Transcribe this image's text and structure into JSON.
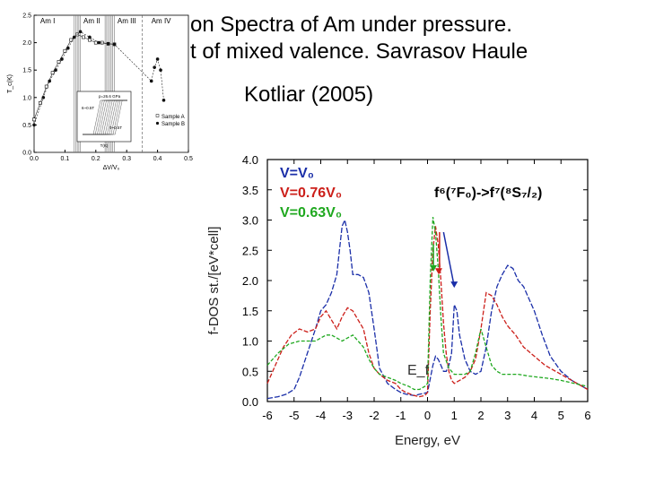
{
  "slide": {
    "title_lines": [
      "on Spectra of Am under pressure.",
      "t of mixed valence. Savrasov Haule",
      "Kotliar (2005)"
    ]
  },
  "chart_data": [
    {
      "type": "line",
      "title": "",
      "xlabel": "ΔV/V₀",
      "ylabel": "T_c(K)",
      "xlim": [
        0.0,
        0.5
      ],
      "ylim": [
        0.0,
        2.5
      ],
      "xticks": [
        "0.0",
        "0.1",
        "0.2",
        "0.3",
        "0.4",
        "0.5"
      ],
      "yticks": [
        "0.0",
        "0.5",
        "1.0",
        "1.5",
        "2.0",
        "2.5"
      ],
      "phase_labels": [
        "Am I",
        "Am II",
        "Am III",
        "Am IV"
      ],
      "legend": [
        "Sample A",
        "Sample B"
      ],
      "series": [
        {
          "name": "Sample A",
          "x": [
            0.0,
            0.02,
            0.04,
            0.06,
            0.08,
            0.1,
            0.12,
            0.14,
            0.16,
            0.18,
            0.2,
            0.22,
            0.24,
            0.26
          ],
          "y": [
            0.6,
            0.9,
            1.2,
            1.45,
            1.65,
            1.85,
            2.05,
            2.15,
            2.1,
            2.05,
            2.0,
            2.0,
            1.98,
            1.97
          ]
        },
        {
          "name": "Sample B",
          "x": [
            0.0,
            0.03,
            0.05,
            0.07,
            0.09,
            0.11,
            0.13,
            0.15,
            0.18,
            0.21,
            0.24,
            0.26,
            0.38,
            0.39,
            0.4,
            0.41,
            0.42
          ],
          "y": [
            0.5,
            1.0,
            1.3,
            1.5,
            1.7,
            1.9,
            2.1,
            2.2,
            2.1,
            2.0,
            1.98,
            1.97,
            1.3,
            1.55,
            1.7,
            1.5,
            0.95
          ]
        }
      ],
      "inset": {
        "xlabel": "T(K)",
        "labels": [
          "p=26.6 GPa",
          "6~0.5T",
          "0~0.5T"
        ]
      }
    },
    {
      "type": "line",
      "title": "",
      "xlabel": "Energy, eV",
      "ylabel": "f-DOS st./[eV*cell]",
      "xlim": [
        -6,
        6
      ],
      "ylim": [
        0.0,
        4.0
      ],
      "xticks": [
        "-6",
        "-5",
        "-4",
        "-3",
        "-2",
        "-1",
        "0",
        "1",
        "2",
        "3",
        "4",
        "5",
        "6"
      ],
      "yticks": [
        "0.0",
        "0.5",
        "1.0",
        "1.5",
        "2.0",
        "2.5",
        "3.0",
        "3.5",
        "4.0"
      ],
      "annotations": {
        "transition": "f⁶(⁷F₀)->f⁷(⁸S₇/₂)",
        "fermi": "E_f"
      },
      "series": [
        {
          "name": "V=V₀",
          "color": "#1a2ea8",
          "x": [
            -6,
            -5.6,
            -5.3,
            -5.0,
            -4.8,
            -4.5,
            -4.2,
            -4.0,
            -3.8,
            -3.6,
            -3.4,
            -3.3,
            -3.2,
            -3.1,
            -3.0,
            -2.9,
            -2.8,
            -2.6,
            -2.4,
            -2.2,
            -2.0,
            -1.8,
            -1.5,
            -1.2,
            -1.0,
            -0.8,
            -0.5,
            -0.3,
            0.0,
            0.2,
            0.3,
            0.4,
            0.5,
            0.6,
            0.7,
            0.8,
            0.9,
            1.0,
            1.1,
            1.2,
            1.4,
            1.6,
            1.8,
            2.0,
            2.2,
            2.4,
            2.6,
            2.8,
            3.0,
            3.2,
            3.4,
            3.6,
            3.8,
            4.0,
            4.3,
            4.6,
            5.0,
            5.4,
            5.8,
            6.0
          ],
          "y": [
            0.05,
            0.08,
            0.12,
            0.2,
            0.4,
            0.8,
            1.2,
            1.5,
            1.6,
            1.8,
            2.1,
            2.5,
            2.9,
            3.0,
            2.8,
            2.5,
            2.1,
            2.1,
            2.05,
            1.8,
            1.2,
            0.55,
            0.3,
            0.2,
            0.15,
            0.12,
            0.1,
            0.12,
            0.15,
            0.6,
            0.75,
            0.7,
            0.6,
            0.5,
            0.5,
            0.6,
            0.8,
            1.6,
            1.5,
            1.1,
            0.7,
            0.5,
            0.45,
            0.5,
            0.9,
            1.5,
            1.9,
            2.1,
            2.25,
            2.2,
            2.0,
            1.9,
            1.7,
            1.5,
            1.1,
            0.75,
            0.5,
            0.35,
            0.25,
            0.2
          ]
        },
        {
          "name": "V=0.76V₀",
          "color": "#cc1f1a",
          "x": [
            -6,
            -5.7,
            -5.4,
            -5.1,
            -4.8,
            -4.5,
            -4.2,
            -4.0,
            -3.8,
            -3.6,
            -3.4,
            -3.2,
            -3.0,
            -2.8,
            -2.6,
            -2.4,
            -2.2,
            -2.0,
            -1.8,
            -1.5,
            -1.2,
            -1.0,
            -0.8,
            -0.5,
            -0.3,
            -0.1,
            0.0,
            0.1,
            0.2,
            0.3,
            0.4,
            0.5,
            0.6,
            0.7,
            0.8,
            0.9,
            1.0,
            1.2,
            1.4,
            1.6,
            1.8,
            2.0,
            2.2,
            2.4,
            2.6,
            2.8,
            3.0,
            3.3,
            3.6,
            4.0,
            4.4,
            4.8,
            5.2,
            5.6,
            6.0
          ],
          "y": [
            0.3,
            0.6,
            0.9,
            1.1,
            1.2,
            1.15,
            1.2,
            1.4,
            1.5,
            1.35,
            1.2,
            1.4,
            1.55,
            1.5,
            1.35,
            1.2,
            0.8,
            0.55,
            0.45,
            0.35,
            0.3,
            0.2,
            0.15,
            0.1,
            0.08,
            0.1,
            0.15,
            1.5,
            2.5,
            2.9,
            2.6,
            2.0,
            1.3,
            0.8,
            0.5,
            0.35,
            0.3,
            0.35,
            0.4,
            0.5,
            0.7,
            1.2,
            1.8,
            1.75,
            1.6,
            1.4,
            1.25,
            1.1,
            0.9,
            0.75,
            0.6,
            0.5,
            0.4,
            0.3,
            0.2
          ]
        },
        {
          "name": "V=0.63V₀",
          "color": "#1fa81f",
          "x": [
            -6,
            -5.6,
            -5.2,
            -4.8,
            -4.5,
            -4.2,
            -4.0,
            -3.8,
            -3.6,
            -3.4,
            -3.2,
            -3.0,
            -2.8,
            -2.6,
            -2.4,
            -2.2,
            -2.0,
            -1.8,
            -1.5,
            -1.2,
            -1.0,
            -0.7,
            -0.5,
            -0.3,
            -0.1,
            0.0,
            0.1,
            0.2,
            0.3,
            0.4,
            0.5,
            0.6,
            0.8,
            1.0,
            1.2,
            1.4,
            1.6,
            1.8,
            2.0,
            2.2,
            2.4,
            2.6,
            2.8,
            3.0,
            3.4,
            3.8,
            4.2,
            4.6,
            5.0,
            5.5,
            6.0
          ],
          "y": [
            0.6,
            0.8,
            0.95,
            1.0,
            1.0,
            1.0,
            1.05,
            1.1,
            1.1,
            1.05,
            1.0,
            1.05,
            1.1,
            1.0,
            0.9,
            0.7,
            0.55,
            0.45,
            0.4,
            0.35,
            0.3,
            0.25,
            0.2,
            0.2,
            0.25,
            0.3,
            2.0,
            3.05,
            2.8,
            2.2,
            1.4,
            0.8,
            0.55,
            0.45,
            0.45,
            0.45,
            0.5,
            0.8,
            1.2,
            0.9,
            0.6,
            0.5,
            0.45,
            0.45,
            0.45,
            0.42,
            0.4,
            0.38,
            0.35,
            0.3,
            0.25
          ]
        }
      ]
    }
  ]
}
